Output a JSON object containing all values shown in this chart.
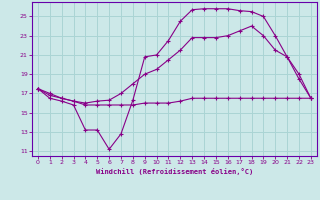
{
  "xlabel": "Windchill (Refroidissement éolien,°C)",
  "bg_color": "#cce8e8",
  "grid_color": "#aad4d4",
  "line_color": "#880088",
  "spine_color": "#6600aa",
  "xlim": [
    -0.5,
    23.5
  ],
  "ylim": [
    10.5,
    26.5
  ],
  "xticks": [
    0,
    1,
    2,
    3,
    4,
    5,
    6,
    7,
    8,
    9,
    10,
    11,
    12,
    13,
    14,
    15,
    16,
    17,
    18,
    19,
    20,
    21,
    22,
    23
  ],
  "yticks": [
    11,
    13,
    15,
    17,
    19,
    21,
    23,
    25
  ],
  "curve1_x": [
    0,
    1,
    2,
    3,
    4,
    5,
    6,
    7,
    8,
    9,
    10,
    11,
    12,
    13,
    14,
    15,
    16,
    17,
    18,
    19,
    20,
    21,
    22,
    23
  ],
  "curve1_y": [
    17.5,
    16.5,
    16.2,
    15.8,
    13.2,
    13.2,
    11.2,
    12.8,
    16.3,
    20.8,
    21.0,
    22.5,
    24.5,
    25.7,
    25.8,
    25.8,
    25.8,
    25.6,
    25.5,
    25.0,
    23.0,
    20.8,
    18.5,
    16.5
  ],
  "curve2_x": [
    0,
    1,
    2,
    3,
    4,
    5,
    6,
    7,
    8,
    9,
    10,
    11,
    12,
    13,
    14,
    15,
    16,
    17,
    18,
    19,
    20,
    21,
    22,
    23
  ],
  "curve2_y": [
    17.5,
    17.0,
    16.5,
    16.2,
    15.8,
    15.8,
    15.8,
    15.8,
    15.8,
    16.0,
    16.0,
    16.0,
    16.2,
    16.5,
    16.5,
    16.5,
    16.5,
    16.5,
    16.5,
    16.5,
    16.5,
    16.5,
    16.5,
    16.5
  ],
  "curve3_x": [
    0,
    1,
    2,
    3,
    4,
    5,
    6,
    7,
    8,
    9,
    10,
    11,
    12,
    13,
    14,
    15,
    16,
    17,
    18,
    19,
    20,
    21,
    22,
    23
  ],
  "curve3_y": [
    17.5,
    16.8,
    16.5,
    16.2,
    16.0,
    16.2,
    16.3,
    17.0,
    18.0,
    19.0,
    19.5,
    20.5,
    21.5,
    22.8,
    22.8,
    22.8,
    23.0,
    23.5,
    24.0,
    23.0,
    21.5,
    20.8,
    19.0,
    16.5
  ]
}
